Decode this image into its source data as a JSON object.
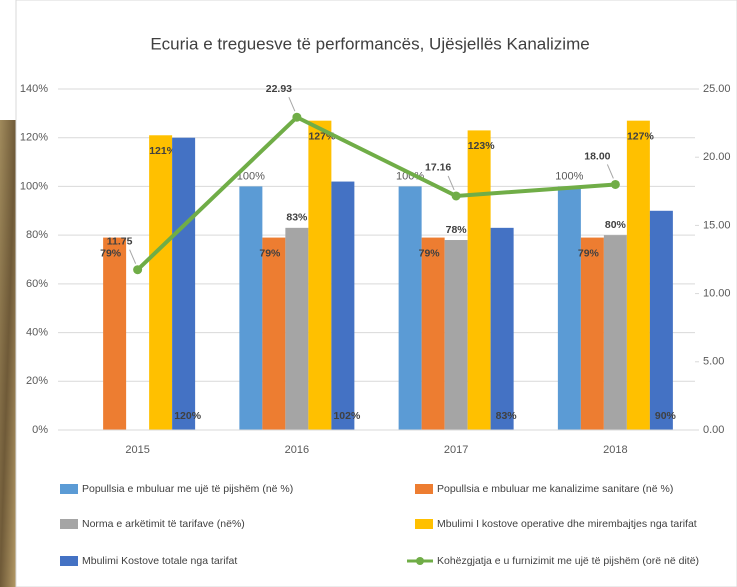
{
  "chart_data": {
    "type": "bar-line",
    "title": "Ecuria e treguesve të performancës,  Ujësjellës Kanalizime",
    "categories": [
      "2015",
      "2016",
      "2017",
      "2018"
    ],
    "series": [
      {
        "name": "Popullsia e mbuluar me ujë të pijshëm (në %)",
        "color": "#5b9bd5",
        "type": "bar",
        "values": [
          null,
          100,
          100,
          100
        ],
        "value_labels": [
          null,
          "100%",
          "100%",
          "100%"
        ]
      },
      {
        "name": "Popullsia e mbuluar me kanalizime sanitare (në %)",
        "color": "#ed7d31",
        "type": "bar",
        "values": [
          79,
          79,
          79,
          79
        ],
        "value_labels": [
          "79%",
          "79%",
          "79%",
          "79%"
        ]
      },
      {
        "name": "Norma e arkëtimit të tarifave (në%)",
        "color": "#a5a5a5",
        "type": "bar",
        "values": [
          null,
          83,
          78,
          80
        ],
        "value_labels": [
          null,
          "83%",
          "78%",
          "80%"
        ]
      },
      {
        "name": "Mbulimi I kostove operative dhe mirembajtjes nga tarifat",
        "color": "#ffc000",
        "type": "bar",
        "values": [
          121,
          127,
          123,
          127
        ],
        "value_labels": [
          "121%",
          "127%",
          "123%",
          "127%"
        ]
      },
      {
        "name": "Mbulimi Kostove totale  nga tarifat",
        "color": "#4472c4",
        "type": "bar",
        "values": [
          120,
          102,
          83,
          90
        ],
        "value_labels": [
          "120%",
          "102%",
          "83%",
          "90%"
        ]
      },
      {
        "name": "Kohëzgjatja e u furnizimit me ujë të pijshëm (orë në ditë)",
        "color": "#70ad47",
        "type": "line",
        "axis": "y2",
        "values": [
          11.75,
          22.93,
          17.16,
          18.0
        ],
        "value_labels": [
          "11.75",
          "22.93",
          "17.16",
          "18.00"
        ]
      }
    ],
    "ylim": [
      0,
      140
    ],
    "yticks": [
      {
        "value": 0,
        "label": "0%"
      },
      {
        "value": 20,
        "label": "20%"
      },
      {
        "value": 40,
        "label": "40%"
      },
      {
        "value": 60,
        "label": "60%"
      },
      {
        "value": 80,
        "label": "80%"
      },
      {
        "value": 100,
        "label": "100%"
      },
      {
        "value": 120,
        "label": "120%"
      },
      {
        "value": 140,
        "label": "140%"
      }
    ],
    "y2lim": [
      0,
      25
    ],
    "y2ticks": [
      {
        "value": 0,
        "label": "0.00"
      },
      {
        "value": 5,
        "label": "5.00"
      },
      {
        "value": 10,
        "label": "10.00"
      },
      {
        "value": 15,
        "label": "15.00"
      },
      {
        "value": 20,
        "label": "20.00"
      },
      {
        "value": 25,
        "label": "25.00"
      }
    ],
    "grid": true
  }
}
